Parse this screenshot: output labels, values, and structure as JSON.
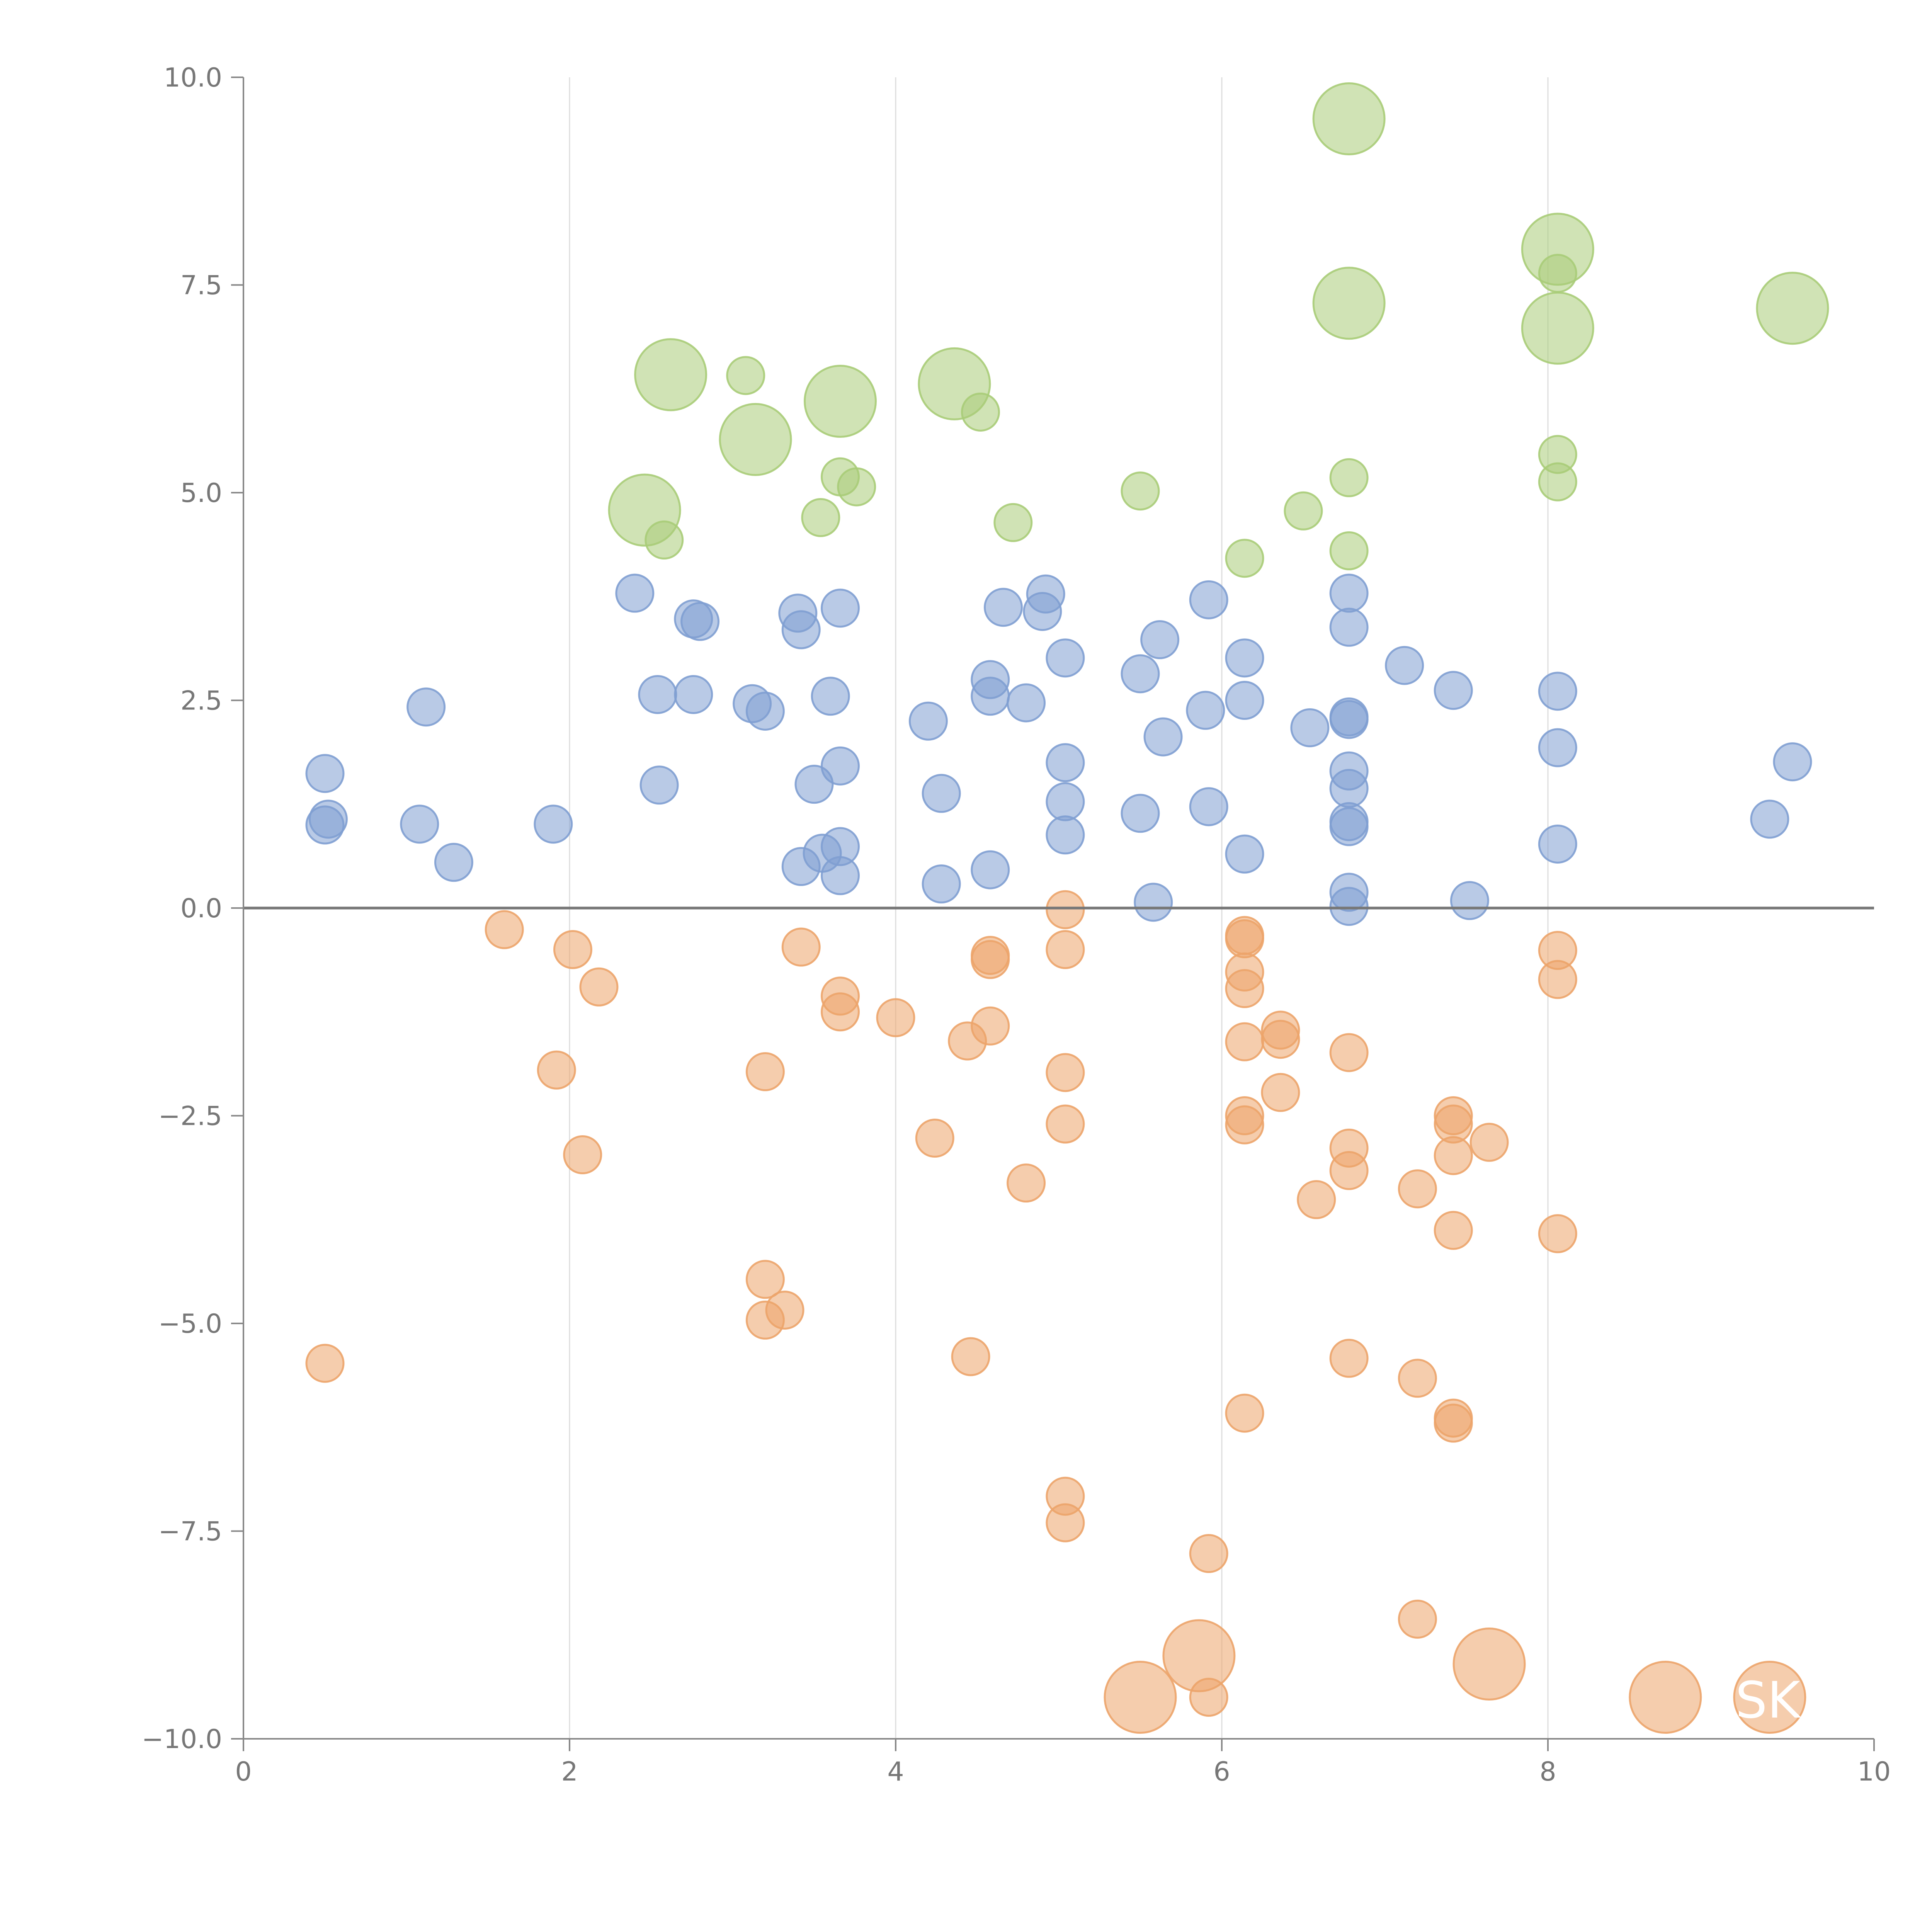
{
  "chart_data": {
    "type": "scatter",
    "title": "",
    "xlabel": "",
    "ylabel": "",
    "xlim": [
      0,
      10
    ],
    "ylim": [
      -10,
      10
    ],
    "x_ticks": [
      0,
      2,
      4,
      6,
      8,
      10
    ],
    "x_tick_labels": [
      "0",
      "2",
      "4",
      "6",
      "8",
      "10"
    ],
    "y_ticks": [
      -10,
      -7.5,
      -5,
      -2.5,
      0,
      2.5,
      5,
      7.5,
      10
    ],
    "y_tick_labels": [
      "−10.0",
      "−7.5",
      "−5.0",
      "−2.5",
      "0.0",
      "2.5",
      "5.0",
      "7.5",
      "10.0"
    ],
    "grid": "vertical",
    "reference_line_y": 0,
    "annotation": "SK",
    "colors": {
      "blue": "#7f9fd2",
      "orange": "#eca46a",
      "green": "#a9cc78"
    },
    "series": [
      {
        "name": "blue",
        "color": "#7f9fd2",
        "points": [
          [
            0.5,
            1.62,
            1
          ],
          [
            0.5,
            1.0,
            1
          ],
          [
            0.52,
            1.07,
            1
          ],
          [
            1.08,
            1.01,
            1
          ],
          [
            1.12,
            2.42,
            1
          ],
          [
            1.29,
            0.55,
            1
          ],
          [
            1.9,
            1.01,
            1
          ],
          [
            2.4,
            3.79,
            1
          ],
          [
            2.54,
            2.57,
            1
          ],
          [
            2.55,
            1.48,
            1
          ],
          [
            2.76,
            2.57,
            1
          ],
          [
            2.76,
            3.48,
            1
          ],
          [
            2.8,
            3.45,
            1
          ],
          [
            3.12,
            2.46,
            1
          ],
          [
            3.2,
            2.37,
            1
          ],
          [
            3.4,
            3.55,
            1
          ],
          [
            3.42,
            3.35,
            1
          ],
          [
            3.42,
            0.5,
            1
          ],
          [
            3.5,
            1.49,
            1
          ],
          [
            3.55,
            0.66,
            1
          ],
          [
            3.6,
            2.55,
            1
          ],
          [
            3.66,
            3.61,
            1
          ],
          [
            3.66,
            1.71,
            1
          ],
          [
            3.66,
            0.74,
            1
          ],
          [
            3.66,
            0.39,
            1
          ],
          [
            4.2,
            2.25,
            1
          ],
          [
            4.28,
            1.38,
            1
          ],
          [
            4.28,
            0.29,
            1
          ],
          [
            4.58,
            2.75,
            1
          ],
          [
            4.58,
            2.55,
            1
          ],
          [
            4.58,
            0.46,
            1
          ],
          [
            4.66,
            3.62,
            1
          ],
          [
            4.8,
            2.47,
            1
          ],
          [
            4.9,
            3.57,
            1
          ],
          [
            4.92,
            3.78,
            1
          ],
          [
            5.04,
            3.01,
            1
          ],
          [
            5.04,
            1.75,
            1
          ],
          [
            5.04,
            1.28,
            1
          ],
          [
            5.04,
            0.88,
            1
          ],
          [
            5.5,
            2.82,
            1
          ],
          [
            5.5,
            1.14,
            1
          ],
          [
            5.58,
            0.07,
            1
          ],
          [
            5.62,
            3.23,
            1
          ],
          [
            5.64,
            2.06,
            1
          ],
          [
            5.9,
            2.38,
            1
          ],
          [
            5.92,
            3.71,
            1
          ],
          [
            5.92,
            1.22,
            1
          ],
          [
            6.14,
            3.01,
            1
          ],
          [
            6.14,
            2.5,
            1
          ],
          [
            6.14,
            0.65,
            1
          ],
          [
            6.54,
            2.17,
            1
          ],
          [
            6.78,
            3.79,
            1
          ],
          [
            6.78,
            3.38,
            1
          ],
          [
            6.78,
            2.27,
            1
          ],
          [
            6.78,
            2.3,
            1
          ],
          [
            6.78,
            1.65,
            1
          ],
          [
            6.78,
            1.44,
            1
          ],
          [
            6.78,
            1.04,
            1
          ],
          [
            6.78,
            0.98,
            1
          ],
          [
            6.78,
            0.19,
            1
          ],
          [
            6.78,
            0.02,
            1
          ],
          [
            7.12,
            2.92,
            1
          ],
          [
            7.42,
            2.62,
            1
          ],
          [
            7.52,
            0.09,
            1
          ],
          [
            8.06,
            2.61,
            1
          ],
          [
            8.06,
            1.93,
            1
          ],
          [
            8.06,
            0.77,
            1
          ],
          [
            9.36,
            1.07,
            1
          ],
          [
            9.5,
            1.76,
            1
          ]
        ]
      },
      {
        "name": "orange",
        "color": "#eca46a",
        "points": [
          [
            0.5,
            -5.48,
            1
          ],
          [
            1.6,
            -0.26,
            1
          ],
          [
            2.02,
            -0.5,
            1
          ],
          [
            2.18,
            -0.95,
            1
          ],
          [
            1.92,
            -1.95,
            1
          ],
          [
            2.08,
            -2.97,
            1
          ],
          [
            3.2,
            -1.97,
            1
          ],
          [
            3.2,
            -4.47,
            1
          ],
          [
            3.2,
            -4.96,
            1
          ],
          [
            3.32,
            -4.84,
            1
          ],
          [
            3.42,
            -0.47,
            1
          ],
          [
            3.66,
            -1.06,
            1
          ],
          [
            3.66,
            -1.25,
            1
          ],
          [
            4.0,
            -1.32,
            1
          ],
          [
            4.24,
            -2.77,
            1
          ],
          [
            4.44,
            -1.6,
            1
          ],
          [
            4.46,
            -5.4,
            1
          ],
          [
            4.58,
            -0.57,
            1
          ],
          [
            4.58,
            -0.62,
            1
          ],
          [
            4.58,
            -1.42,
            1
          ],
          [
            4.8,
            -3.31,
            1
          ],
          [
            5.04,
            -0.02,
            1
          ],
          [
            5.04,
            -0.5,
            1
          ],
          [
            5.04,
            -1.98,
            1
          ],
          [
            5.04,
            -2.6,
            1
          ],
          [
            5.04,
            -7.08,
            1
          ],
          [
            5.04,
            -7.4,
            1
          ],
          [
            5.92,
            -7.77,
            1
          ],
          [
            5.92,
            -9.5,
            1
          ],
          [
            6.14,
            -0.33,
            1
          ],
          [
            6.14,
            -0.37,
            1
          ],
          [
            6.14,
            -0.77,
            1
          ],
          [
            6.14,
            -0.97,
            1
          ],
          [
            6.14,
            -1.61,
            1
          ],
          [
            6.14,
            -2.5,
            1
          ],
          [
            6.14,
            -2.61,
            1
          ],
          [
            6.14,
            -6.08,
            1
          ],
          [
            6.36,
            -1.47,
            1
          ],
          [
            6.36,
            -1.58,
            1
          ],
          [
            6.36,
            -2.22,
            1
          ],
          [
            6.58,
            -3.51,
            1
          ],
          [
            6.78,
            -1.74,
            1
          ],
          [
            6.78,
            -2.89,
            1
          ],
          [
            6.78,
            -3.16,
            1
          ],
          [
            6.78,
            -5.42,
            1
          ],
          [
            7.2,
            -3.38,
            1
          ],
          [
            7.2,
            -5.66,
            1
          ],
          [
            7.2,
            -8.56,
            1
          ],
          [
            7.42,
            -2.5,
            1
          ],
          [
            7.42,
            -2.6,
            1
          ],
          [
            7.42,
            -2.98,
            1
          ],
          [
            7.42,
            -3.88,
            1
          ],
          [
            7.42,
            -6.14,
            1
          ],
          [
            7.42,
            -6.2,
            1
          ],
          [
            7.64,
            -2.82,
            1
          ],
          [
            8.06,
            -0.51,
            1
          ],
          [
            8.06,
            -0.86,
            1
          ],
          [
            8.06,
            -3.92,
            1
          ],
          [
            5.5,
            -9.5,
            2
          ],
          [
            5.86,
            -9.0,
            2
          ],
          [
            7.64,
            -9.1,
            2
          ],
          [
            8.72,
            -9.5,
            2
          ],
          [
            9.36,
            -9.5,
            2
          ]
        ]
      },
      {
        "name": "green",
        "color": "#a9cc78",
        "points": [
          [
            2.46,
            4.79,
            2
          ],
          [
            2.58,
            4.43,
            1
          ],
          [
            2.62,
            6.42,
            2
          ],
          [
            3.08,
            6.41,
            1
          ],
          [
            3.14,
            5.64,
            2
          ],
          [
            3.54,
            4.7,
            1
          ],
          [
            3.66,
            5.19,
            1
          ],
          [
            3.66,
            6.1,
            2
          ],
          [
            3.76,
            5.07,
            1
          ],
          [
            4.36,
            6.31,
            2
          ],
          [
            4.52,
            5.97,
            1
          ],
          [
            4.72,
            4.64,
            1
          ],
          [
            5.5,
            5.02,
            1
          ],
          [
            6.14,
            4.21,
            1
          ],
          [
            6.5,
            4.78,
            1
          ],
          [
            6.78,
            9.5,
            2
          ],
          [
            6.78,
            7.28,
            2
          ],
          [
            6.78,
            5.18,
            1
          ],
          [
            6.78,
            4.3,
            1
          ],
          [
            8.06,
            7.93,
            2
          ],
          [
            8.06,
            6.98,
            2
          ],
          [
            8.06,
            7.64,
            1
          ],
          [
            8.06,
            5.46,
            1
          ],
          [
            8.06,
            5.13,
            1
          ],
          [
            9.5,
            7.22,
            2
          ]
        ]
      }
    ]
  }
}
